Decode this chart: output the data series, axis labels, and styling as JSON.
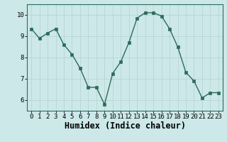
{
  "x": [
    0,
    1,
    2,
    3,
    4,
    5,
    6,
    7,
    8,
    9,
    10,
    11,
    12,
    13,
    14,
    15,
    16,
    17,
    18,
    19,
    20,
    21,
    22,
    23
  ],
  "y": [
    9.35,
    8.9,
    9.15,
    9.35,
    8.6,
    8.15,
    7.5,
    6.6,
    6.6,
    5.8,
    7.25,
    7.8,
    8.7,
    9.85,
    10.1,
    10.1,
    9.95,
    9.35,
    8.5,
    7.3,
    6.9,
    6.1,
    6.35,
    6.35
  ],
  "line_color": "#2d6b5e",
  "marker": "s",
  "marker_size": 2.5,
  "bg_color": "#cce8e8",
  "grid_color": "#b8d4d4",
  "xlabel": "Humidex (Indice chaleur)",
  "xlim": [
    -0.5,
    23.5
  ],
  "ylim": [
    5.5,
    10.5
  ],
  "yticks": [
    6,
    7,
    8,
    9,
    10
  ],
  "xticks": [
    0,
    1,
    2,
    3,
    4,
    5,
    6,
    7,
    8,
    9,
    10,
    11,
    12,
    13,
    14,
    15,
    16,
    17,
    18,
    19,
    20,
    21,
    22,
    23
  ],
  "tick_fontsize": 6.5,
  "xlabel_fontsize": 8.5,
  "line_width": 1.0
}
